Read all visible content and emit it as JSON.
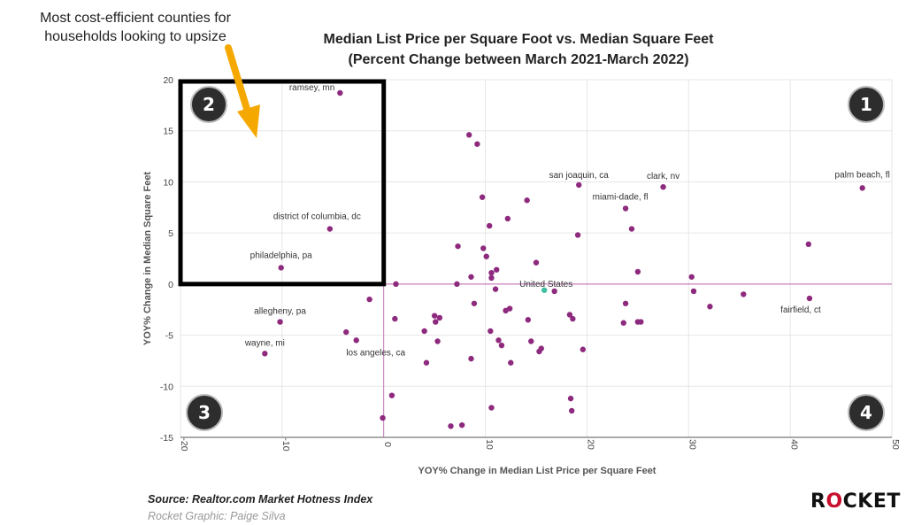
{
  "callout": "Most cost-efficient counties for households looking to upsize",
  "source": "Source: Realtor.com Market Hotness Index",
  "credit": "Rocket Graphic: Paige Silva",
  "logo": {
    "pre": "R",
    "o": "O",
    "post": "CKET"
  },
  "colors": {
    "point": "#8e2a7e",
    "us_point": "#3fbf9f",
    "arrow": "#f5a800",
    "box": "#000000",
    "zero_line": "#c060b0",
    "badge": "#2d2d2d"
  },
  "quadrants": [
    {
      "label": "1",
      "position": "top-right"
    },
    {
      "label": "2",
      "position": "top-left"
    },
    {
      "label": "3",
      "position": "bottom-left"
    },
    {
      "label": "4",
      "position": "bottom-right"
    }
  ],
  "chart_data": {
    "type": "scatter",
    "title": [
      "Median List Price per Square Foot vs. Median Square Feet",
      "(Percent Change between March 2021-March 2022)"
    ],
    "xlabel": "YOY% Change in Median List Price per Square Feet",
    "ylabel": "YOY% Change in Median Square Feet",
    "xlim": [
      -20,
      50
    ],
    "ylim": [
      -15,
      20
    ],
    "xticks": [
      -20,
      -10,
      0,
      10,
      20,
      30,
      40,
      50
    ],
    "yticks": [
      -15,
      -10,
      -5,
      0,
      5,
      10,
      15,
      20
    ],
    "grid": true,
    "highlight_box": {
      "x": [
        -20,
        0
      ],
      "y": [
        0,
        20
      ]
    },
    "labeled_points": [
      {
        "label": "ramsey, mn",
        "x": -4.3,
        "y": 18.7
      },
      {
        "label": "district of columbia, dc",
        "x": -5.3,
        "y": 5.4
      },
      {
        "label": "philadelphia, pa",
        "x": -10.1,
        "y": 1.6
      },
      {
        "label": "allegheny, pa",
        "x": -10.2,
        "y": -3.7
      },
      {
        "label": "wayne, mi",
        "x": -11.7,
        "y": -6.8
      },
      {
        "label": "los angeles, ca",
        "x": -2.7,
        "y": -5.5
      },
      {
        "label": "san joaquin, ca",
        "x": 19.2,
        "y": 9.7
      },
      {
        "label": "clark, nv",
        "x": 27.5,
        "y": 9.5
      },
      {
        "label": "miami-dade, fl",
        "x": 23.8,
        "y": 7.4
      },
      {
        "label": "palm beach, fl",
        "x": 47.1,
        "y": 9.4
      },
      {
        "label": "fairfield, ct",
        "x": 41.9,
        "y": -1.4
      },
      {
        "label": "United States",
        "x": 15.8,
        "y": -0.6,
        "highlight": true
      }
    ],
    "points": [
      [
        8.4,
        14.6
      ],
      [
        9.2,
        13.7
      ],
      [
        9.7,
        8.5
      ],
      [
        14.1,
        8.2
      ],
      [
        12.2,
        6.4
      ],
      [
        10.4,
        5.7
      ],
      [
        19.1,
        4.8
      ],
      [
        24.4,
        5.4
      ],
      [
        7.3,
        3.7
      ],
      [
        9.8,
        3.5
      ],
      [
        10.1,
        2.7
      ],
      [
        15.0,
        2.1
      ],
      [
        11.1,
        1.4
      ],
      [
        10.6,
        1.1
      ],
      [
        10.6,
        0.6
      ],
      [
        8.6,
        0.7
      ],
      [
        7.2,
        0.0
      ],
      [
        1.2,
        0.0
      ],
      [
        11.0,
        -0.5
      ],
      [
        16.8,
        -0.7
      ],
      [
        25.0,
        1.2
      ],
      [
        30.3,
        0.7
      ],
      [
        30.5,
        -0.7
      ],
      [
        41.8,
        3.9
      ],
      [
        35.4,
        -1.0
      ],
      [
        32.1,
        -2.2
      ],
      [
        23.8,
        -1.9
      ],
      [
        8.9,
        -1.9
      ],
      [
        -1.4,
        -1.5
      ],
      [
        12.4,
        -2.4
      ],
      [
        12.0,
        -2.6
      ],
      [
        18.3,
        -3.0
      ],
      [
        18.6,
        -3.4
      ],
      [
        5.0,
        -3.1
      ],
      [
        5.5,
        -3.3
      ],
      [
        1.1,
        -3.4
      ],
      [
        14.2,
        -3.5
      ],
      [
        23.6,
        -3.8
      ],
      [
        25.0,
        -3.7
      ],
      [
        25.3,
        -3.7
      ],
      [
        4.0,
        -4.6
      ],
      [
        5.1,
        -3.7
      ],
      [
        10.5,
        -4.6
      ],
      [
        -3.7,
        -4.7
      ],
      [
        5.3,
        -5.6
      ],
      [
        11.3,
        -5.5
      ],
      [
        11.6,
        -6.0
      ],
      [
        14.5,
        -5.6
      ],
      [
        15.5,
        -6.3
      ],
      [
        15.3,
        -6.6
      ],
      [
        19.6,
        -6.4
      ],
      [
        8.6,
        -7.3
      ],
      [
        4.2,
        -7.7
      ],
      [
        12.5,
        -7.7
      ],
      [
        0.8,
        -10.9
      ],
      [
        18.4,
        -11.2
      ],
      [
        10.6,
        -12.1
      ],
      [
        18.5,
        -12.4
      ],
      [
        -0.1,
        -13.1
      ],
      [
        6.6,
        -13.9
      ],
      [
        7.7,
        -13.8
      ]
    ]
  }
}
